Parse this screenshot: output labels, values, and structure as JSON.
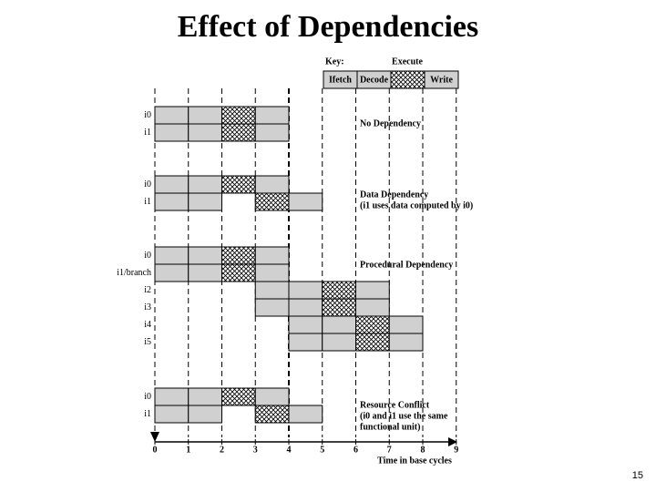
{
  "title": "Effect of Dependencies",
  "key": {
    "label": "Key:",
    "execute": "Execute",
    "stages": [
      "Ifetch",
      "Decode",
      "Write"
    ]
  },
  "sections": [
    {
      "rows": [
        "i0",
        "i1"
      ],
      "note": [
        "No Dependency"
      ]
    },
    {
      "rows": [
        "i0",
        "i1"
      ],
      "note": [
        "Data Dependency",
        "(i1 uses data computed by i0)"
      ]
    },
    {
      "rows": [
        "i0",
        "i1/branch",
        "i2",
        "i3",
        "i4",
        "i5"
      ],
      "note": [
        "Procedural Dependency"
      ]
    },
    {
      "rows": [
        "i0",
        "i1"
      ],
      "note": [
        "Resource Conflict",
        "(i0 and i1 use the same",
        "functional unit)"
      ]
    }
  ],
  "axis": {
    "ticks": [
      0,
      1,
      2,
      3,
      4,
      5,
      6,
      7,
      8,
      9
    ],
    "label": "Time in base cycles"
  },
  "page_number": "15"
}
